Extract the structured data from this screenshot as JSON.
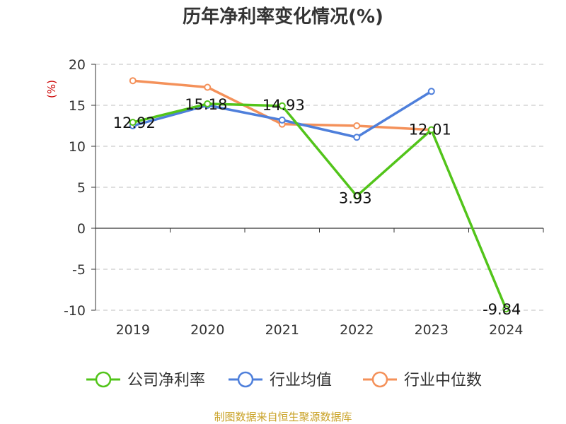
{
  "chart_data": {
    "type": "line",
    "title": "历年净利率变化情况(%)",
    "unit_label": "(%)",
    "categories": [
      "2019",
      "2020",
      "2021",
      "2022",
      "2023",
      "2024"
    ],
    "ylim": [
      -10,
      20
    ],
    "yticks": [
      20,
      15,
      10,
      5,
      0,
      -5,
      -10
    ],
    "grid": true,
    "legend_position": "bottom",
    "series": [
      {
        "name": "公司净利率",
        "color": "#52c41a",
        "values": [
          12.92,
          15.18,
          14.93,
          3.93,
          12.01,
          -9.84
        ],
        "labels": [
          "12.92",
          "15.18",
          "14.93",
          "3.93",
          "12.01",
          "-9.84"
        ]
      },
      {
        "name": "行业均值",
        "color": "#4e7fdb",
        "values": [
          12.5,
          15.0,
          13.2,
          11.1,
          16.7,
          null
        ]
      },
      {
        "name": "行业中位数",
        "color": "#f4915a",
        "values": [
          18.0,
          17.2,
          12.7,
          12.5,
          12.0,
          null
        ]
      }
    ]
  },
  "source": "制图数据来自恒生聚源数据库"
}
